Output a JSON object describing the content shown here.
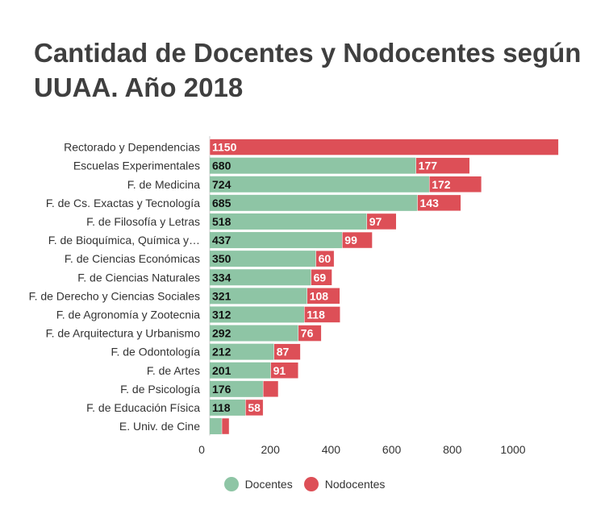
{
  "title": "Cantidad de Docentes y Nodocentes según UUAA. Año 2018",
  "colors": {
    "docentes": "#8ec5a5",
    "nodocentes": "#dd4f57"
  },
  "chart_data": {
    "type": "bar",
    "orientation": "horizontal",
    "stacked": true,
    "title": "Cantidad de Docentes y Nodocentes según UUAA. Año 2018",
    "xlim": [
      0,
      1150
    ],
    "xticks": [
      0,
      200,
      400,
      600,
      800,
      1000
    ],
    "legend_position": "bottom",
    "categories": [
      "Rectorado y Dependencias",
      "Escuelas Experimentales",
      "F. de Medicina",
      "F. de Cs. Exactas y Tecnología",
      "F. de Filosofía y Letras",
      "F. de Bioquímica, Química y…",
      "F. de Ciencias Económicas",
      "F. de Ciencias Naturales",
      "F. de Derecho y Ciencias Sociales",
      "F. de Agronomía y Zootecnia",
      "F. de Arquitectura y Urbanismo",
      "F. de Odontología",
      "F. de Artes",
      "F. de Psicología",
      "F. de Educación Física",
      "E. Univ. de Cine"
    ],
    "series": [
      {
        "name": "Docentes",
        "values": [
          0,
          680,
          724,
          685,
          518,
          437,
          350,
          334,
          321,
          312,
          292,
          212,
          201,
          176,
          118,
          40
        ]
      },
      {
        "name": "Nodocentes",
        "values": [
          1150,
          177,
          172,
          143,
          97,
          99,
          60,
          69,
          108,
          118,
          76,
          87,
          91,
          50,
          58,
          24
        ]
      }
    ],
    "value_labels": {
      "Docentes": [
        "",
        "680",
        "724",
        "685",
        "518",
        "437",
        "350",
        "334",
        "321",
        "312",
        "292",
        "212",
        "201",
        "176",
        "118",
        ""
      ],
      "Nodocentes": [
        "1150",
        "177",
        "172",
        "143",
        "97",
        "99",
        "60",
        "69",
        "108",
        "118",
        "76",
        "87",
        "91",
        "",
        "58",
        ""
      ]
    }
  }
}
